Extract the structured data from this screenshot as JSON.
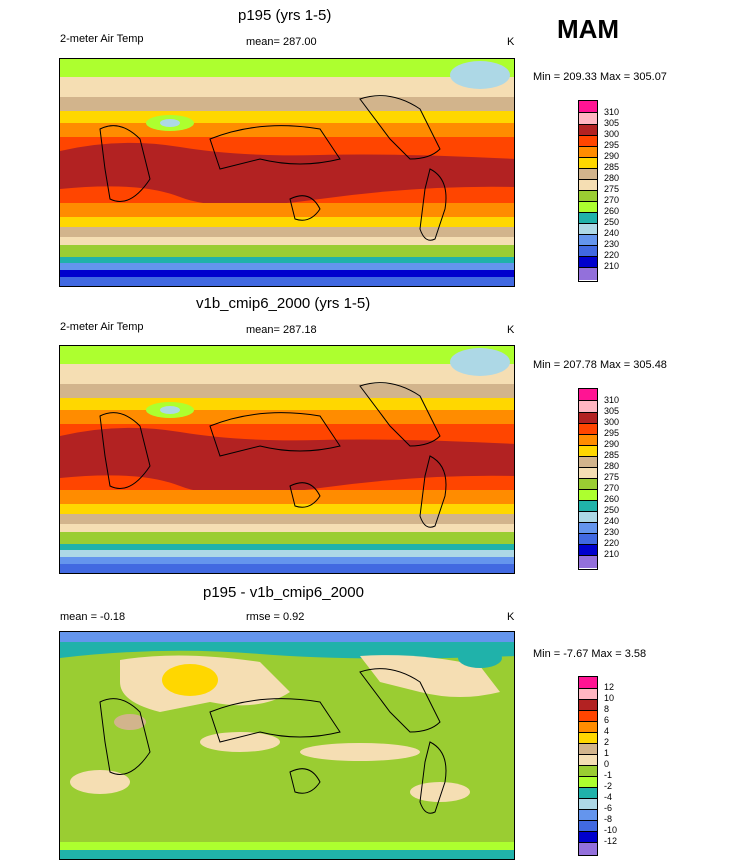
{
  "season": "MAM",
  "panels": [
    {
      "id": "p195",
      "title": "p195 (yrs 1-5)",
      "left_label": "2-meter Air Temp",
      "center_label": "mean= 287.00",
      "units": "K",
      "minmax": "Min = 209.33 Max = 305.07",
      "colorbar": {
        "labels": [
          "310",
          "305",
          "300",
          "295",
          "290",
          "285",
          "280",
          "275",
          "270",
          "260",
          "250",
          "240",
          "230",
          "220",
          "210"
        ],
        "colors": [
          "#ff1493",
          "#ffb6c1",
          "#b22222",
          "#ff4500",
          "#ff8c00",
          "#ffd700",
          "#d2b48c",
          "#f5deb3",
          "#9acd32",
          "#adff2f",
          "#20b2aa",
          "#add8e6",
          "#6495ed",
          "#4169e1",
          "#0000cd",
          "#9370db"
        ]
      }
    },
    {
      "id": "v1b",
      "title": "v1b_cmip6_2000 (yrs 1-5)",
      "left_label": "2-meter Air Temp",
      "center_label": "mean= 287.18",
      "units": "K",
      "minmax": "Min = 207.78 Max = 305.48",
      "colorbar": {
        "labels": [
          "310",
          "305",
          "300",
          "295",
          "290",
          "285",
          "280",
          "275",
          "270",
          "260",
          "250",
          "240",
          "230",
          "220",
          "210"
        ],
        "colors": [
          "#ff1493",
          "#ffb6c1",
          "#b22222",
          "#ff4500",
          "#ff8c00",
          "#ffd700",
          "#d2b48c",
          "#f5deb3",
          "#9acd32",
          "#adff2f",
          "#20b2aa",
          "#add8e6",
          "#6495ed",
          "#4169e1",
          "#0000cd",
          "#9370db"
        ]
      }
    },
    {
      "id": "diff",
      "title": "p195 - v1b_cmip6_2000",
      "left_label": "mean =  -0.18",
      "center_label": "rmse =   0.92",
      "units": "K",
      "minmax": "Min =  -7.67 Max =   3.58",
      "colorbar": {
        "labels": [
          "12",
          "10",
          "8",
          "6",
          "4",
          "2",
          "1",
          "0",
          "-1",
          "-2",
          "-4",
          "-6",
          "-8",
          "-10",
          "-12"
        ],
        "colors": [
          "#ff1493",
          "#ffb6c1",
          "#b22222",
          "#ff4500",
          "#ff8c00",
          "#ffd700",
          "#d2b48c",
          "#f5deb3",
          "#9acd32",
          "#adff2f",
          "#20b2aa",
          "#add8e6",
          "#6495ed",
          "#4169e1",
          "#0000cd",
          "#9370db"
        ]
      }
    }
  ]
}
